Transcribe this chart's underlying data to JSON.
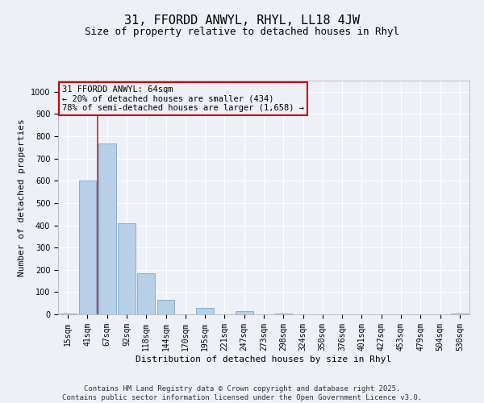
{
  "title": "31, FFORDD ANWYL, RHYL, LL18 4JW",
  "subtitle": "Size of property relative to detached houses in Rhyl",
  "xlabel": "Distribution of detached houses by size in Rhyl",
  "ylabel": "Number of detached properties",
  "bins": [
    "15sqm",
    "41sqm",
    "67sqm",
    "92sqm",
    "118sqm",
    "144sqm",
    "170sqm",
    "195sqm",
    "221sqm",
    "247sqm",
    "273sqm",
    "298sqm",
    "324sqm",
    "350sqm",
    "376sqm",
    "401sqm",
    "427sqm",
    "453sqm",
    "479sqm",
    "504sqm",
    "530sqm"
  ],
  "values": [
    5,
    600,
    767,
    410,
    185,
    65,
    0,
    30,
    0,
    15,
    0,
    2,
    0,
    0,
    0,
    0,
    0,
    0,
    0,
    0,
    2
  ],
  "bar_color": "#b8cfe8",
  "bar_edge_color": "#7ba7cc",
  "vline_color": "#cc2222",
  "vline_x": 1.5,
  "ylim": [
    0,
    1050
  ],
  "yticks": [
    0,
    100,
    200,
    300,
    400,
    500,
    600,
    700,
    800,
    900,
    1000
  ],
  "annotation_lines": [
    "31 FFORDD ANWYL: 64sqm",
    "← 20% of detached houses are smaller (434)",
    "78% of semi-detached houses are larger (1,658) →"
  ],
  "annotation_box_edge_color": "#cc0000",
  "bg_color": "#edf1f7",
  "plot_bg_color": "#edf1f7",
  "footer_text": "Contains HM Land Registry data © Crown copyright and database right 2025.\nContains public sector information licensed under the Open Government Licence v3.0.",
  "title_fontsize": 11,
  "subtitle_fontsize": 9,
  "axis_label_fontsize": 8,
  "tick_fontsize": 7,
  "annotation_fontsize": 7.5,
  "footer_fontsize": 6.5
}
